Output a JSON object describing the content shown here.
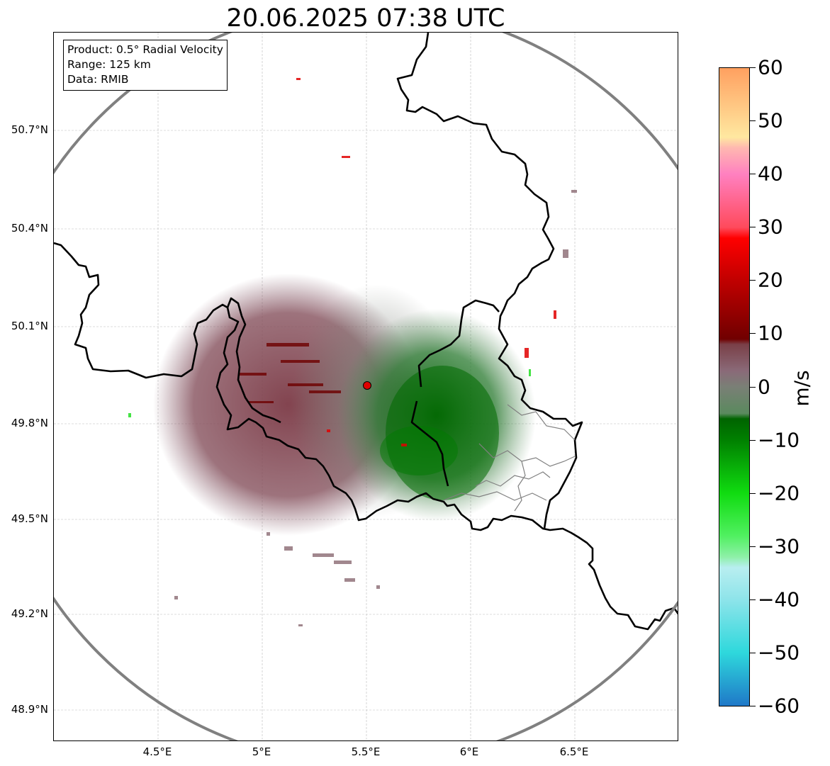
{
  "title": "20.06.2025 07:38 UTC",
  "info_box": {
    "product": "Product: 0.5° Radial Velocity",
    "range": "Range: 125 km",
    "data": "Data: RMIB"
  },
  "map": {
    "latitude_labels": [
      "50.7°N",
      "50.4°N",
      "50.1°N",
      "49.8°N",
      "49.5°N",
      "49.2°N",
      "48.9°N"
    ],
    "longitude_labels": [
      "4.5°E",
      "5°E",
      "5.5°E",
      "6°E",
      "6.5°E"
    ],
    "radar_site": {
      "lon": 5.5,
      "lat": 49.91
    },
    "range_ring_km": 125,
    "colors": {
      "range_ring": "#808080",
      "borders": "#000000",
      "regional_borders": "#808080",
      "radar_site": "#e00000"
    }
  },
  "colorbar": {
    "unit": "m/s",
    "tick_labels": [
      "60",
      "50",
      "40",
      "30",
      "20",
      "10",
      "0",
      "−10",
      "−20",
      "−30",
      "−40",
      "−50",
      "−60"
    ],
    "min": -60,
    "max": 60,
    "stops": [
      {
        "value": -60,
        "color": "#1f78c8"
      },
      {
        "value": -50,
        "color": "#2ed8dc"
      },
      {
        "value": -40,
        "color": "#8ee4ea"
      },
      {
        "value": -34,
        "color": "#b8eef0"
      },
      {
        "value": -32,
        "color": "#8ef0a8"
      },
      {
        "value": -28,
        "color": "#50f060"
      },
      {
        "value": -20,
        "color": "#10dc10"
      },
      {
        "value": -10,
        "color": "#008000"
      },
      {
        "value": -6,
        "color": "#006400"
      },
      {
        "value": -5,
        "color": "#5a8a5e"
      },
      {
        "value": 0,
        "color": "#7a7f76"
      },
      {
        "value": 3,
        "color": "#8a6a78"
      },
      {
        "value": 8,
        "color": "#7a4048"
      },
      {
        "value": 9,
        "color": "#700000"
      },
      {
        "value": 20,
        "color": "#c00000"
      },
      {
        "value": 28,
        "color": "#ff0000"
      },
      {
        "value": 30,
        "color": "#ff4a5c"
      },
      {
        "value": 40,
        "color": "#ff80c0"
      },
      {
        "value": 45,
        "color": "#ffb8b0"
      },
      {
        "value": 47,
        "color": "#ffe8a0"
      },
      {
        "value": 60,
        "color": "#ffa060"
      }
    ]
  }
}
